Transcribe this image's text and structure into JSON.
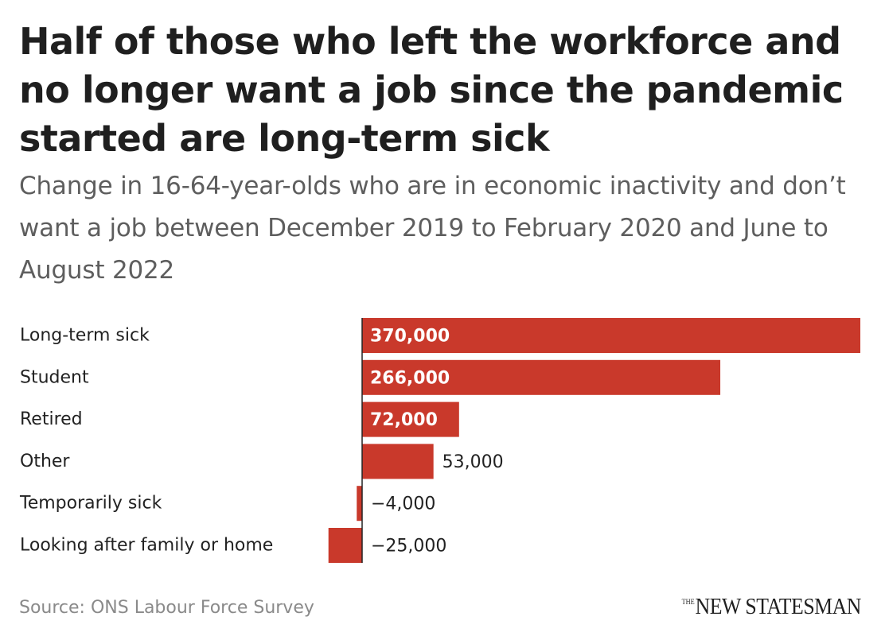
{
  "title": "Half of those who left the workforce and no longer want a job since the pandemic started are long-term sick",
  "subtitle": "Change in 16-64-year-olds who are in economic inactivity and don’t want a job between December 2019 to February 2020 and June to August 2022",
  "source": "Source: ONS Labour Force Survey",
  "logo": {
    "the": "THE",
    "name": "NEW STATESMAN"
  },
  "colors": {
    "bar": "#c9392b",
    "axis": "#222222",
    "label": "#222222",
    "inside_label": "#ffffff"
  },
  "chart_data": {
    "type": "bar",
    "orientation": "horizontal",
    "categories": [
      "Long-term sick",
      "Student",
      "Retired",
      "Other",
      "Temporarily sick",
      "Looking after family or home"
    ],
    "values": [
      370000,
      266000,
      72000,
      53000,
      -4000,
      -25000
    ],
    "value_labels": [
      "370,000",
      "266,000",
      "72,000",
      "53,000",
      "−4,000",
      "−25,000"
    ],
    "label_inside": [
      true,
      true,
      true,
      false,
      false,
      false
    ],
    "xlim": [
      -25000,
      370000
    ],
    "title": "Half of those who left the workforce and no longer want a job since the pandemic started are long-term sick",
    "xlabel": "",
    "ylabel": "",
    "grid": false
  }
}
